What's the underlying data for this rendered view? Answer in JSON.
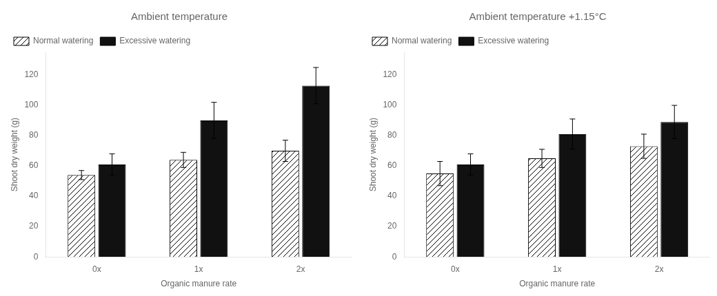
{
  "chart_data": [
    {
      "type": "bar",
      "title": "Ambient temperature",
      "categories": [
        "0x",
        "1x",
        "2x"
      ],
      "xlabel": "Organic manure rate",
      "ylabel": "Shoot dry weight (g)",
      "series": [
        {
          "name": "Normal watering",
          "color": "#ffffff",
          "values": [
            54,
            64,
            70
          ],
          "errors": [
            3,
            5,
            7
          ]
        },
        {
          "name": "Excessive watering",
          "color": "#111111",
          "values": [
            61,
            90,
            113
          ],
          "errors": [
            7,
            12,
            12
          ]
        }
      ],
      "ylim": [
        0,
        135
      ],
      "yticks": [
        0,
        20,
        40,
        60,
        80,
        100,
        120
      ],
      "grid": false,
      "legend": "upper left"
    },
    {
      "type": "bar",
      "title": "Ambient temperature +1.15°C",
      "categories": [
        "0x",
        "1x",
        "2x"
      ],
      "xlabel": "Organic manure rate",
      "ylabel": "Shoot dry weight (g)",
      "series": [
        {
          "name": "Normal watering",
          "color": "#ffffff",
          "values": [
            55,
            65,
            73
          ],
          "errors": [
            8,
            6,
            8
          ]
        },
        {
          "name": "Excessive watering",
          "color": "#111111",
          "values": [
            61,
            81,
            89
          ],
          "errors": [
            7,
            10,
            11
          ]
        }
      ],
      "ylim": [
        0,
        135
      ],
      "yticks": [
        0,
        20,
        40,
        60,
        80,
        100,
        120
      ],
      "grid": false,
      "legend": "upper left"
    }
  ]
}
